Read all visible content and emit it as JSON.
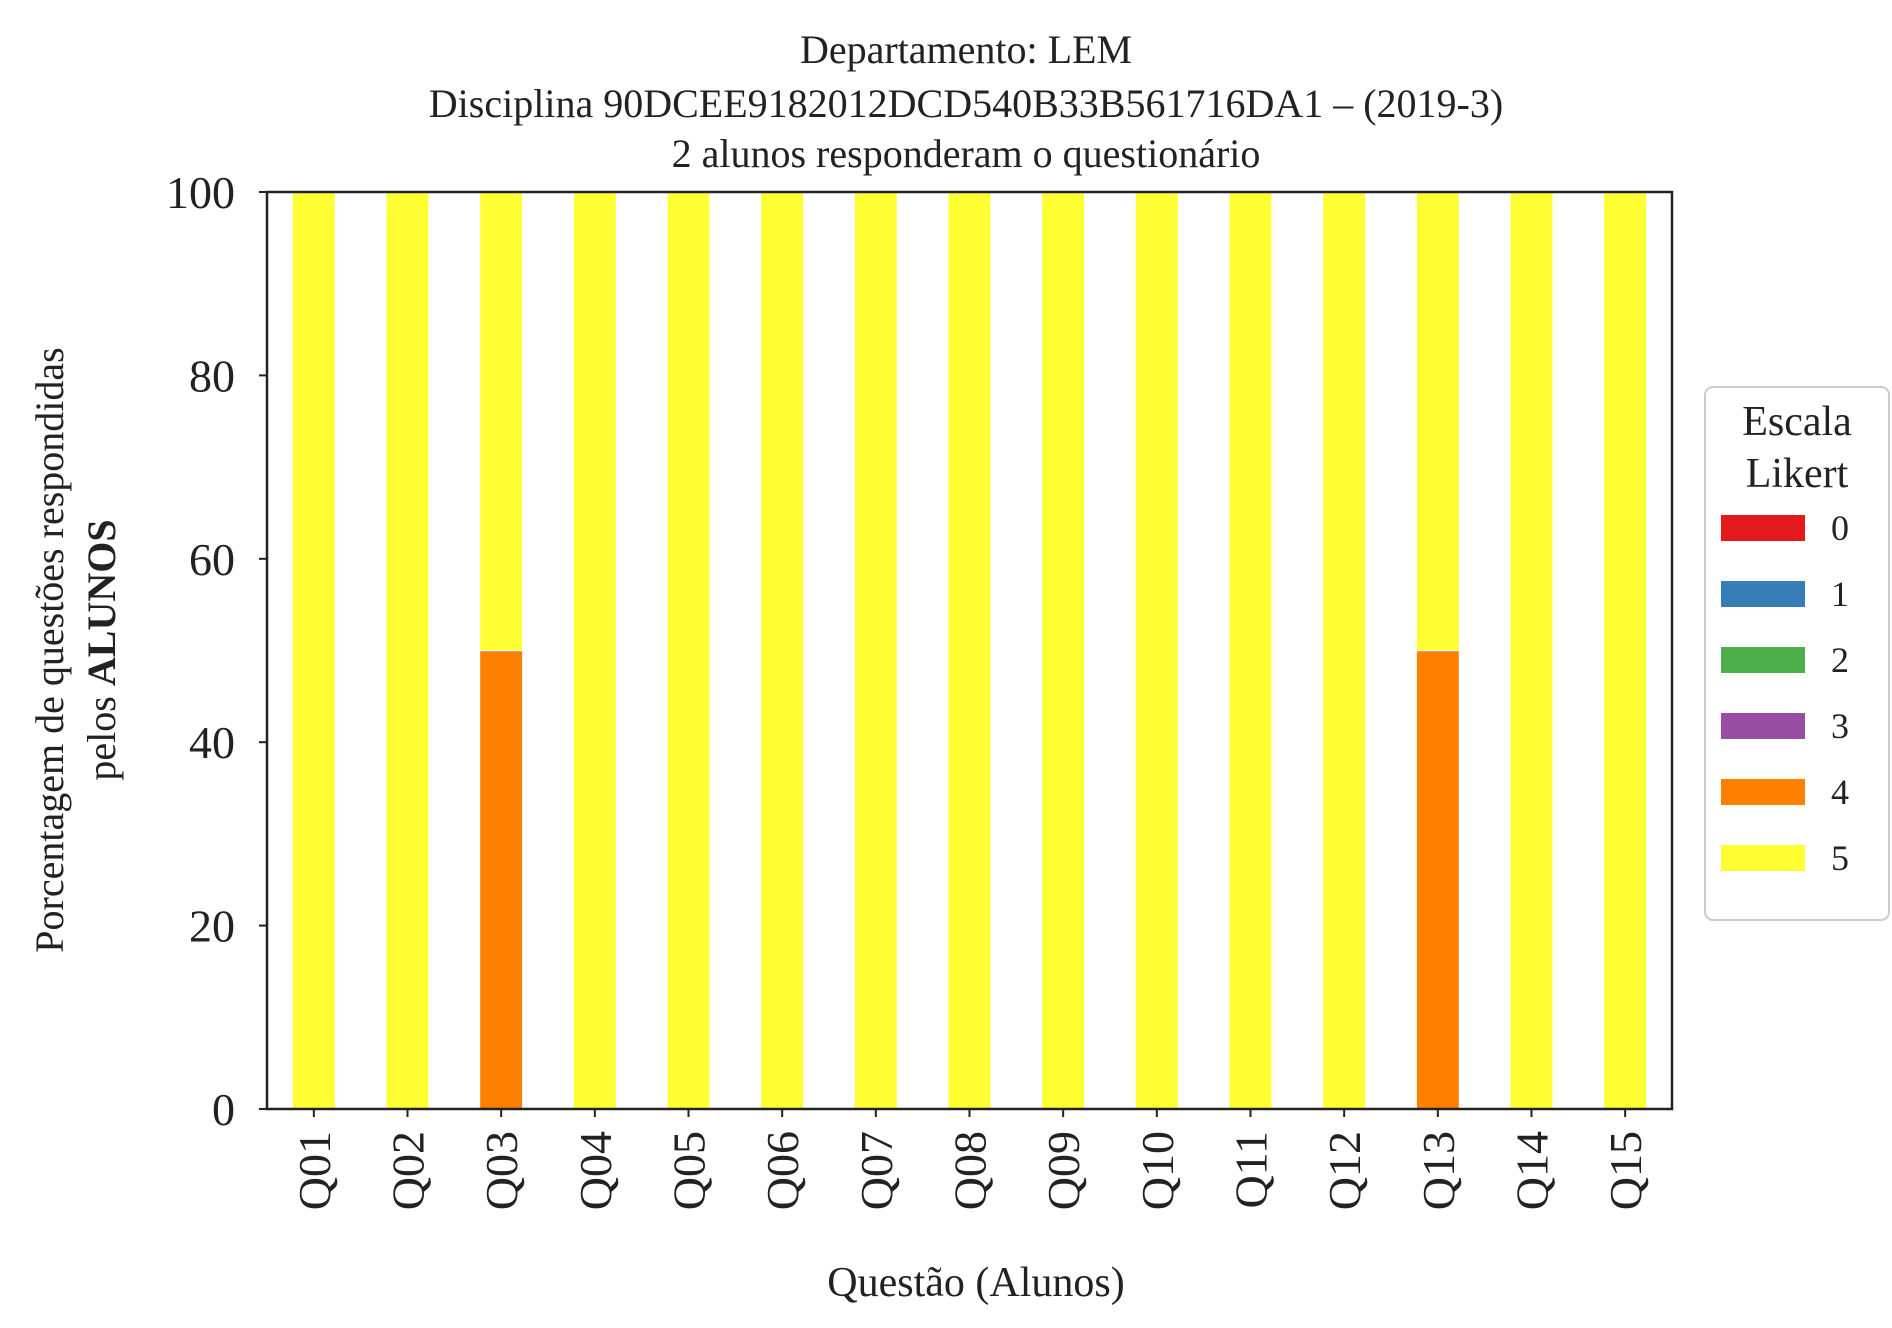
{
  "chart_data": {
    "type": "bar",
    "stacked": true,
    "title_lines": [
      "Departamento: LEM",
      "Disciplina 90DCEE9182012DCD540B33B561716DA1 – (2019-3)",
      "2 alunos responderam o questionário"
    ],
    "xlabel": "Questão (Alunos)",
    "ylabel_line1": "Porcentagem de questões respondidas",
    "ylabel_line2_prefix": "pelos ",
    "ylabel_line2_bold": "ALUNOS",
    "ylim": [
      0,
      100
    ],
    "yticks": [
      0,
      20,
      40,
      60,
      80,
      100
    ],
    "grid": false,
    "categories": [
      "Q01",
      "Q02",
      "Q03",
      "Q04",
      "Q05",
      "Q06",
      "Q07",
      "Q08",
      "Q09",
      "Q10",
      "Q11",
      "Q12",
      "Q13",
      "Q14",
      "Q15"
    ],
    "series": [
      {
        "name": "0",
        "color": "#e41a1c",
        "values": [
          0,
          0,
          0,
          0,
          0,
          0,
          0,
          0,
          0,
          0,
          0,
          0,
          0,
          0,
          0
        ]
      },
      {
        "name": "1",
        "color": "#377eb8",
        "values": [
          0,
          0,
          0,
          0,
          0,
          0,
          0,
          0,
          0,
          0,
          0,
          0,
          0,
          0,
          0
        ]
      },
      {
        "name": "2",
        "color": "#4daf4a",
        "values": [
          0,
          0,
          0,
          0,
          0,
          0,
          0,
          0,
          0,
          0,
          0,
          0,
          0,
          0,
          0
        ]
      },
      {
        "name": "3",
        "color": "#984ea3",
        "values": [
          0,
          0,
          0,
          0,
          0,
          0,
          0,
          0,
          0,
          0,
          0,
          0,
          0,
          0,
          0
        ]
      },
      {
        "name": "4",
        "color": "#ff7f00",
        "values": [
          0,
          0,
          50,
          0,
          0,
          0,
          0,
          0,
          0,
          0,
          0,
          0,
          50,
          0,
          0
        ]
      },
      {
        "name": "5",
        "color": "#ffff33",
        "values": [
          100,
          100,
          50,
          100,
          100,
          100,
          100,
          100,
          100,
          100,
          100,
          100,
          50,
          100,
          100
        ]
      }
    ],
    "legend": {
      "title_lines": [
        "Escala",
        "Likert"
      ],
      "position": "center-right"
    }
  }
}
